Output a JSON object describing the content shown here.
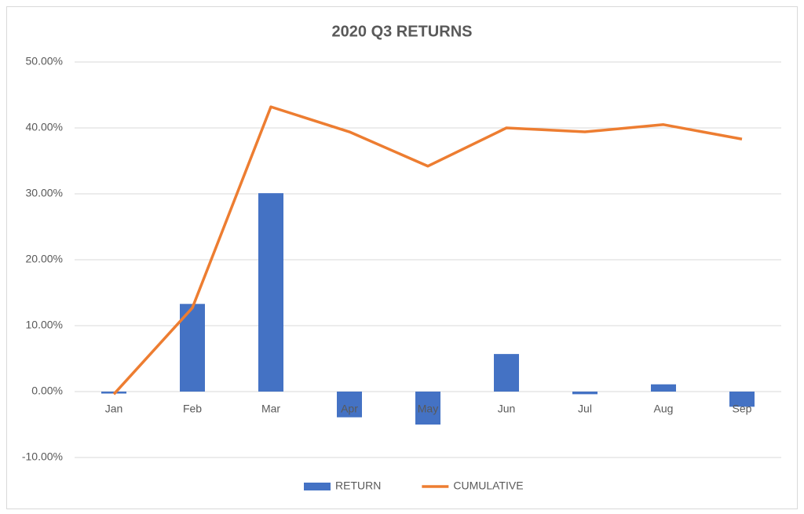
{
  "chart_data": {
    "type": "combo",
    "title": "2020 Q3 RETURNS",
    "categories": [
      "Jan",
      "Feb",
      "Mar",
      "Apr",
      "May",
      "Jun",
      "Jul",
      "Aug",
      "Sep"
    ],
    "series": [
      {
        "name": "RETURN",
        "type": "bar",
        "color": "#4472c4",
        "values": [
          -0.3,
          13.3,
          30.1,
          -3.9,
          -5.0,
          5.7,
          -0.4,
          1.1,
          -2.3
        ]
      },
      {
        "name": "CUMULATIVE",
        "type": "line",
        "color": "#ed7d31",
        "values": [
          -0.4,
          12.7,
          43.2,
          39.4,
          34.2,
          40.0,
          39.4,
          40.5,
          38.3
        ]
      }
    ],
    "ylim": [
      -10,
      50
    ],
    "yticks": [
      {
        "value": -10,
        "label": "-10.00%"
      },
      {
        "value": 0,
        "label": "0.00%"
      },
      {
        "value": 10,
        "label": "10.00%"
      },
      {
        "value": 20,
        "label": "20.00%"
      },
      {
        "value": 30,
        "label": "30.00%"
      },
      {
        "value": 40,
        "label": "40.00%"
      },
      {
        "value": 50,
        "label": "50.00%"
      }
    ],
    "grid": true,
    "legend": "bottom"
  }
}
